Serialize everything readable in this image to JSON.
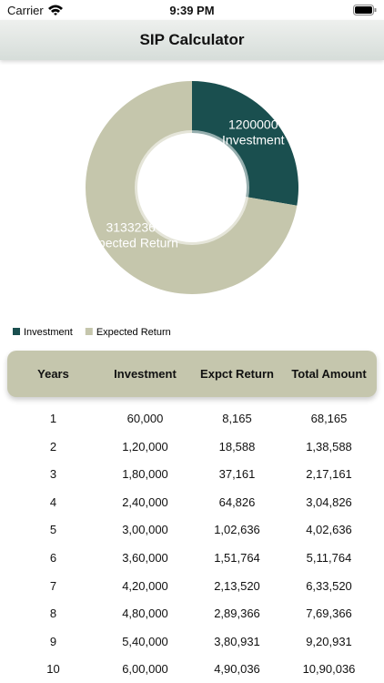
{
  "status_bar": {
    "carrier": "Carrier",
    "time": "9:39 PM"
  },
  "header": {
    "title": "SIP Calculator"
  },
  "chart_data": {
    "type": "pie",
    "categories": [
      "Investment",
      "Expected Return"
    ],
    "values": [
      1200000,
      3133236
    ],
    "colors": [
      "#1a4f4f",
      "#c5c6ac"
    ],
    "legend": "bottom-left"
  },
  "table": {
    "columns": [
      "Years",
      "Investment",
      "Expct Return",
      "Total Amount"
    ],
    "rows": [
      [
        1,
        "60,000",
        "8,165",
        "68,165"
      ],
      [
        2,
        "1,20,000",
        "18,588",
        "1,38,588"
      ],
      [
        3,
        "1,80,000",
        "37,161",
        "2,17,161"
      ],
      [
        4,
        "2,40,000",
        "64,826",
        "3,04,826"
      ],
      [
        5,
        "3,00,000",
        "1,02,636",
        "4,02,636"
      ],
      [
        6,
        "3,60,000",
        "1,51,764",
        "5,11,764"
      ],
      [
        7,
        "4,20,000",
        "2,13,520",
        "6,33,520"
      ],
      [
        8,
        "4,80,000",
        "2,89,366",
        "7,69,366"
      ],
      [
        9,
        "5,40,000",
        "3,80,931",
        "9,20,931"
      ],
      [
        10,
        "6,00,000",
        "4,90,036",
        "10,90,036"
      ]
    ]
  }
}
